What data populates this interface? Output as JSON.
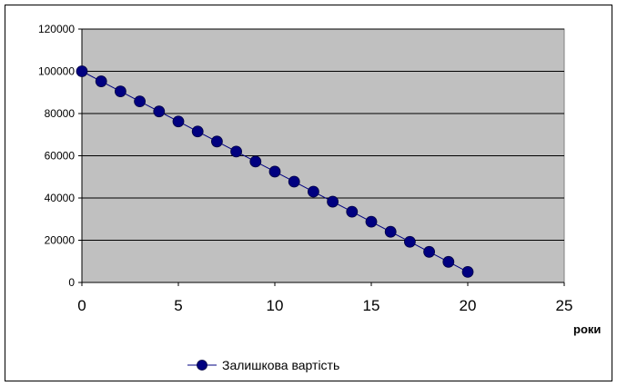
{
  "chart_data": {
    "type": "line",
    "title": "",
    "xlabel": "роки",
    "ylabel": "",
    "xlim": [
      0,
      25
    ],
    "ylim": [
      0,
      120000
    ],
    "x_ticks": [
      "0",
      "5",
      "10",
      "15",
      "20",
      "25"
    ],
    "y_ticks": [
      "0",
      "20000",
      "40000",
      "60000",
      "80000",
      "100000",
      "120000"
    ],
    "grid": true,
    "legend_position": "bottom",
    "colors": {
      "plot_area": "#c0c0c0",
      "series": "#000080",
      "gridline": "#000000"
    },
    "series": [
      {
        "name": "Залишкова вартість",
        "marker": "circle",
        "x": [
          0,
          1,
          2,
          3,
          4,
          5,
          6,
          7,
          8,
          9,
          10,
          11,
          12,
          13,
          14,
          15,
          16,
          17,
          18,
          19,
          20
        ],
        "values": [
          100000,
          95250,
          90500,
          85750,
          81000,
          76250,
          71500,
          66750,
          62000,
          57250,
          52500,
          47750,
          43000,
          38250,
          33500,
          28750,
          24000,
          19250,
          14500,
          9750,
          5000
        ]
      }
    ]
  }
}
